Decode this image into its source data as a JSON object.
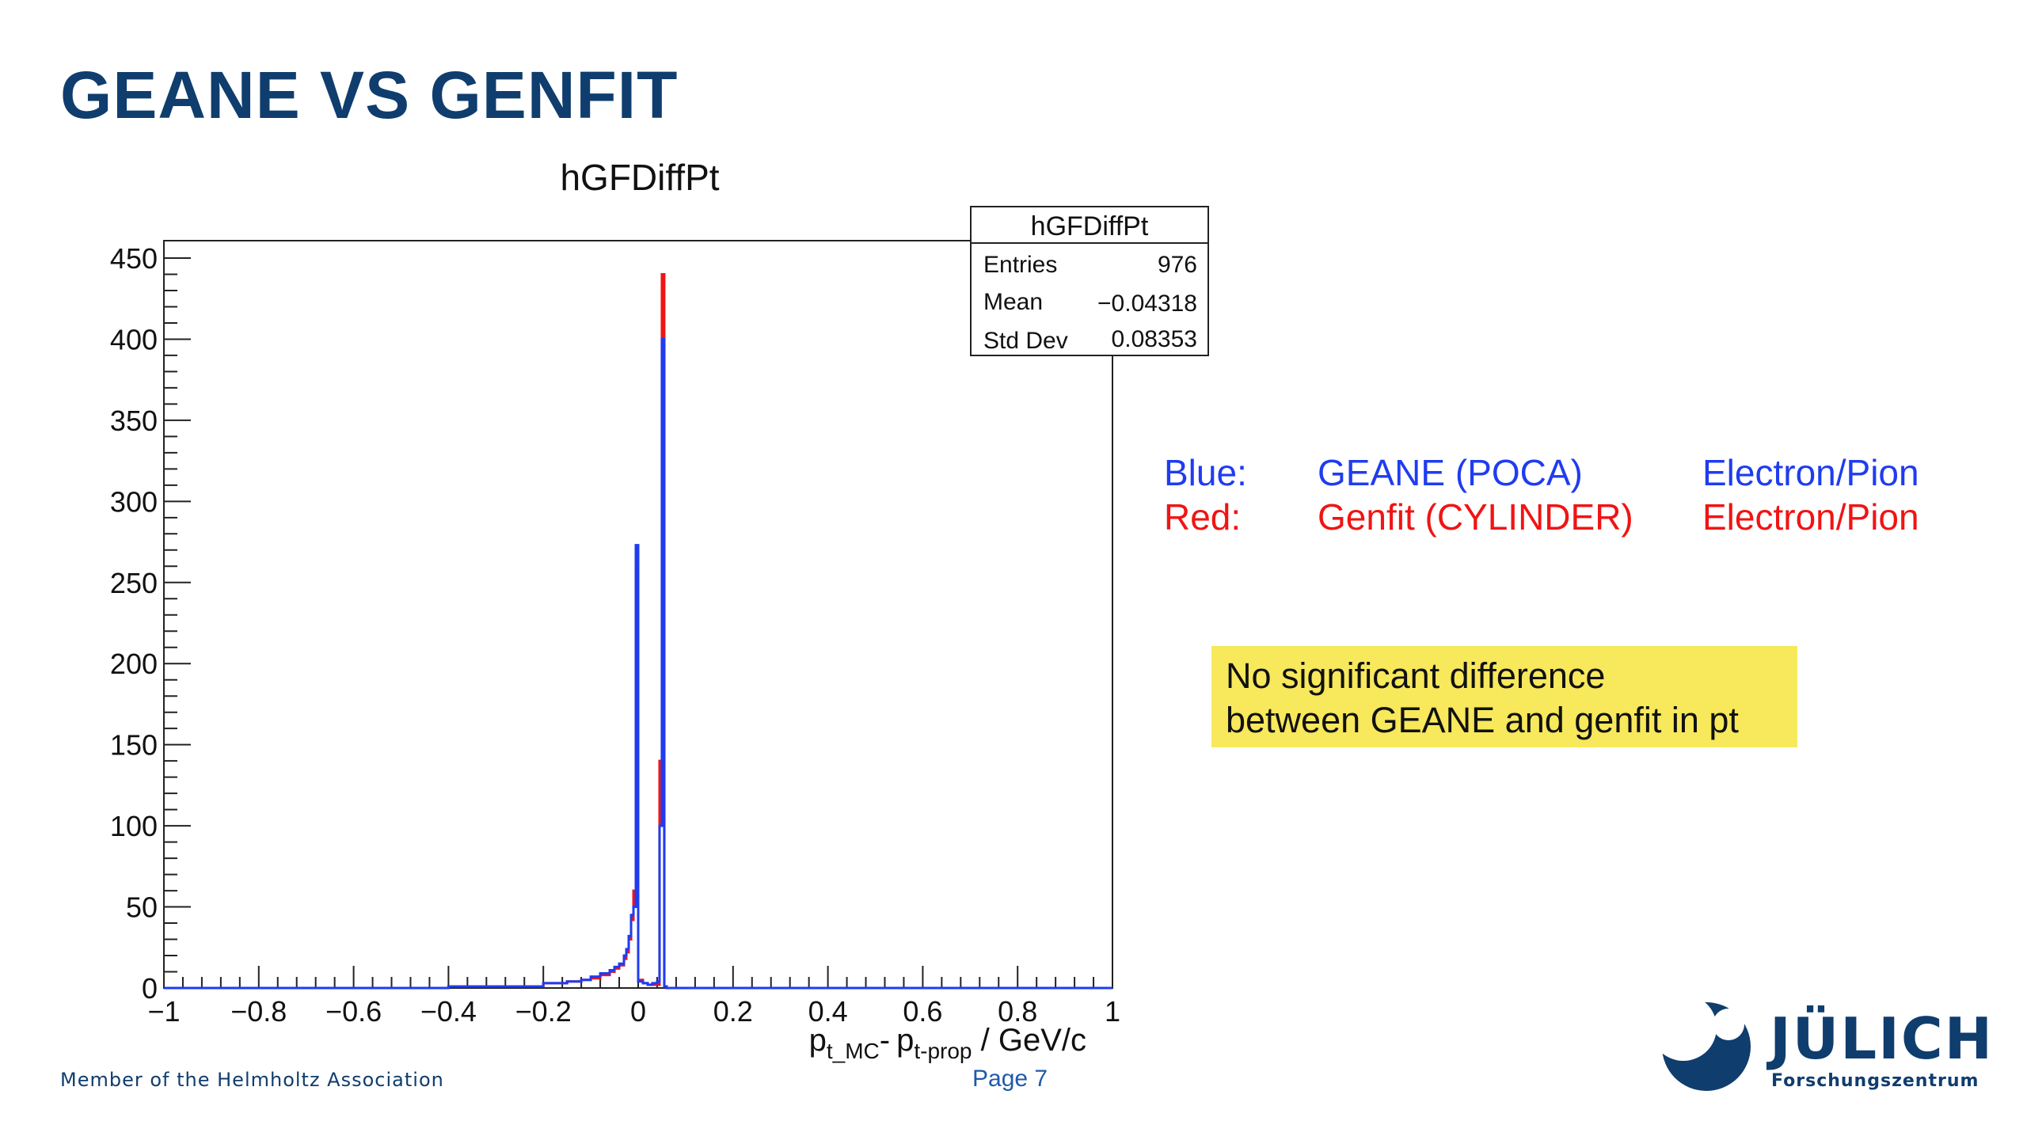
{
  "slide": {
    "title": "GEANE VS GENFIT",
    "footer_left": "Member of the Helmholtz Association",
    "page": "Page 7",
    "logo_word": "JÜLICH",
    "logo_sub": "Forschungszentrum",
    "title_color": "#0f3d6e"
  },
  "legend": {
    "rows": [
      {
        "label": "Blue:",
        "name": "GEANE (POCA)",
        "particles": "Electron/Pion",
        "color": "#1f3cf0"
      },
      {
        "label": "Red:",
        "name": "Genfit (CYLINDER)",
        "particles": "Electron/Pion",
        "color": "#f01414"
      }
    ]
  },
  "note": {
    "line1": "No significant difference",
    "line2": "between GEANE and genfit in pt",
    "bg_color": "#f7e85c"
  },
  "chart_data": {
    "type": "histogram",
    "title": "hGFDiffPt",
    "xlabel": "p_t_MC - p_t-prop / GeV/c",
    "xlabel_parts": {
      "p1": "p",
      "s1": "t_MC",
      "dash": "-",
      "p2": "p",
      "s2": "t-prop",
      "rest": " / GeV/c"
    },
    "xlim": [
      -1,
      1
    ],
    "ylim": [
      0,
      460
    ],
    "xticks": [
      -1,
      -0.8,
      -0.6,
      -0.4,
      -0.2,
      0,
      0.2,
      0.4,
      0.6,
      0.8,
      1
    ],
    "xtick_labels": [
      "−1",
      "−0.8",
      "−0.6",
      "−0.4",
      "−0.2",
      "0",
      "0.2",
      "0.4",
      "0.6",
      "0.8",
      "1"
    ],
    "yticks": [
      0,
      50,
      100,
      150,
      200,
      250,
      300,
      350,
      400,
      450
    ],
    "stats_box": {
      "title": "hGFDiffPt",
      "rows": [
        {
          "label": "Entries",
          "value": "976"
        },
        {
          "label": "Mean",
          "value": "−0.04318"
        },
        {
          "label": "Std Dev",
          "value": "0.08353"
        }
      ]
    },
    "series": [
      {
        "name": "Genfit (CYLINDER)",
        "color": "#f01414",
        "points": [
          [
            -0.4,
            1
          ],
          [
            -0.3,
            1
          ],
          [
            -0.2,
            3
          ],
          [
            -0.15,
            4
          ],
          [
            -0.12,
            5
          ],
          [
            -0.1,
            6
          ],
          [
            -0.08,
            8
          ],
          [
            -0.06,
            10
          ],
          [
            -0.05,
            12
          ],
          [
            -0.04,
            14
          ],
          [
            -0.03,
            18
          ],
          [
            -0.025,
            22
          ],
          [
            -0.02,
            30
          ],
          [
            -0.015,
            42
          ],
          [
            -0.01,
            60
          ],
          [
            -0.005,
            260
          ],
          [
            0,
            5
          ],
          [
            0.01,
            3
          ],
          [
            0.02,
            2
          ],
          [
            0.03,
            2
          ],
          [
            0.04,
            2
          ],
          [
            0.045,
            140
          ],
          [
            0.05,
            440
          ],
          [
            0.055,
            1
          ],
          [
            0.06,
            0
          ]
        ]
      },
      {
        "name": "GEANE (POCA)",
        "color": "#1f3cf0",
        "points": [
          [
            -0.4,
            1
          ],
          [
            -0.3,
            1
          ],
          [
            -0.2,
            3
          ],
          [
            -0.15,
            4
          ],
          [
            -0.12,
            5
          ],
          [
            -0.1,
            7
          ],
          [
            -0.08,
            9
          ],
          [
            -0.06,
            11
          ],
          [
            -0.05,
            13
          ],
          [
            -0.04,
            15
          ],
          [
            -0.03,
            20
          ],
          [
            -0.025,
            24
          ],
          [
            -0.02,
            32
          ],
          [
            -0.015,
            45
          ],
          [
            -0.01,
            50
          ],
          [
            -0.005,
            273
          ],
          [
            0,
            4
          ],
          [
            0.01,
            3
          ],
          [
            0.02,
            2
          ],
          [
            0.03,
            3
          ],
          [
            0.04,
            4
          ],
          [
            0.045,
            100
          ],
          [
            0.05,
            400
          ],
          [
            0.055,
            1
          ],
          [
            0.06,
            0
          ]
        ]
      }
    ]
  }
}
